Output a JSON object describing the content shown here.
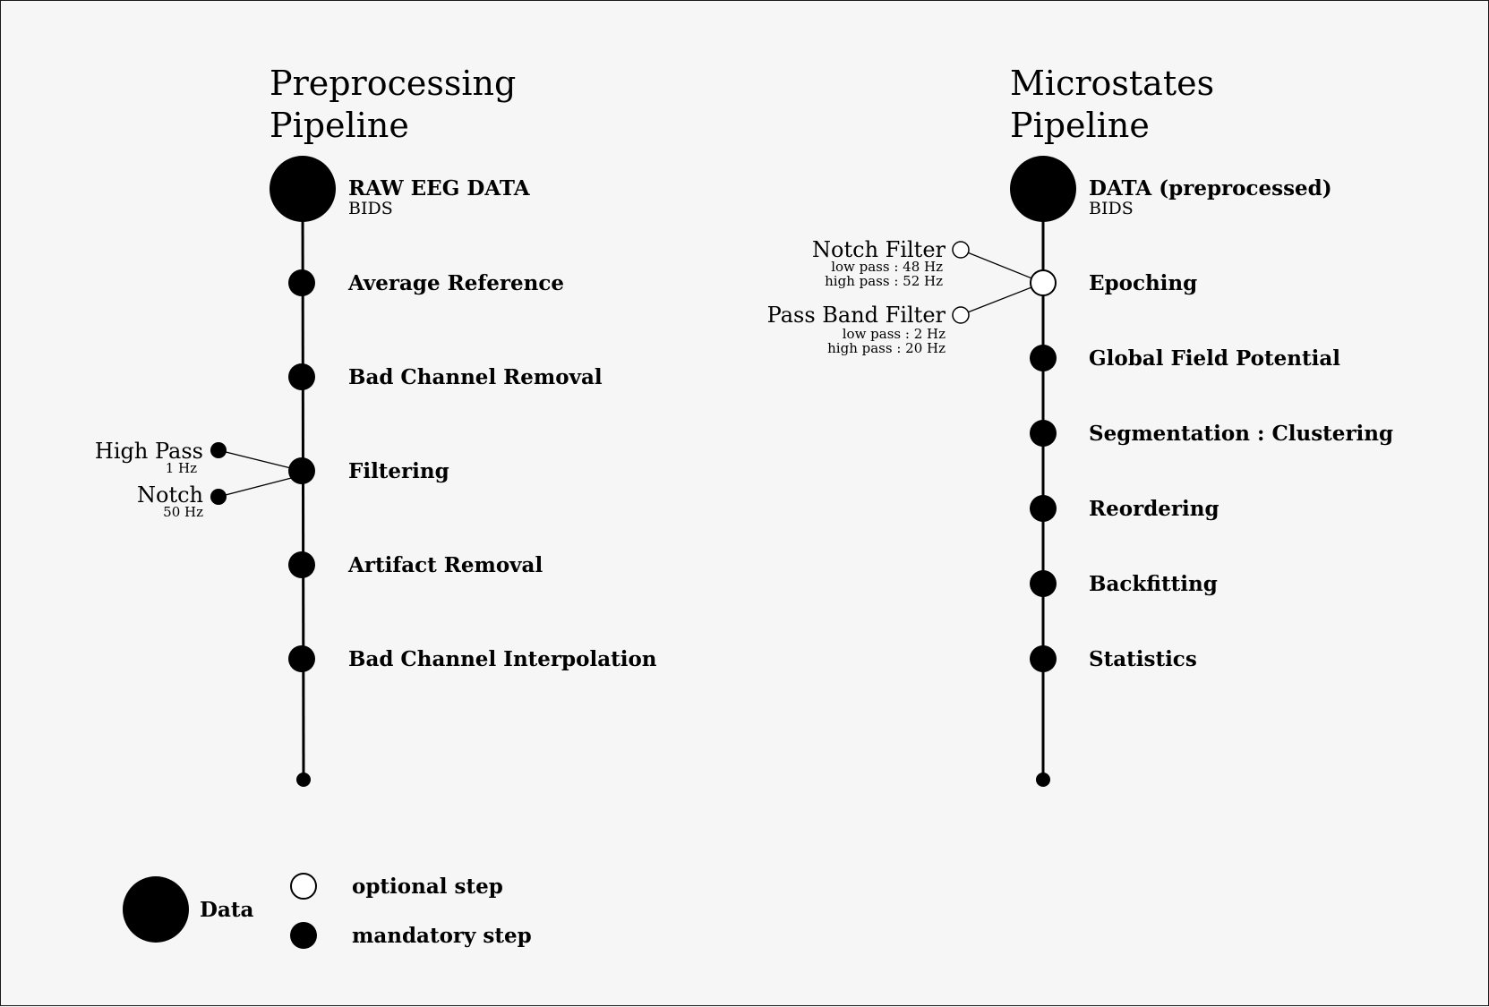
{
  "colors": {
    "background": "#f6f6f6",
    "ink": "#000000",
    "optional_fill": "#ffffff"
  },
  "left": {
    "title_line1": "Preprocessing",
    "title_line2": "Pipeline",
    "data_label": "RAW EEG DATA",
    "data_sub": "BIDS",
    "steps": [
      "Average Reference",
      "Bad Channel Removal",
      "Filtering",
      "Artifact Removal",
      "Bad Channel Interpolation"
    ],
    "branches": [
      {
        "label": "High Pass",
        "note1": "1 Hz"
      },
      {
        "label": "Notch",
        "note1": "50 Hz"
      }
    ]
  },
  "right": {
    "title_line1": "Microstates",
    "title_line2": "Pipeline",
    "data_label": "DATA (preprocessed)",
    "data_sub": "BIDS",
    "steps": [
      "Epoching",
      "Global Field Potential",
      "Segmentation : Clustering",
      "Reordering",
      "Backfitting",
      "Statistics"
    ],
    "branches": [
      {
        "label": "Notch Filter",
        "note1": "low pass : 48 Hz",
        "note2": "high pass : 52 Hz"
      },
      {
        "label": "Pass Band Filter",
        "note1": "low pass : 2 Hz",
        "note2": "high pass : 20 Hz"
      }
    ]
  },
  "legend": {
    "data": "Data",
    "optional": "optional step",
    "mandatory": "mandatory step"
  }
}
